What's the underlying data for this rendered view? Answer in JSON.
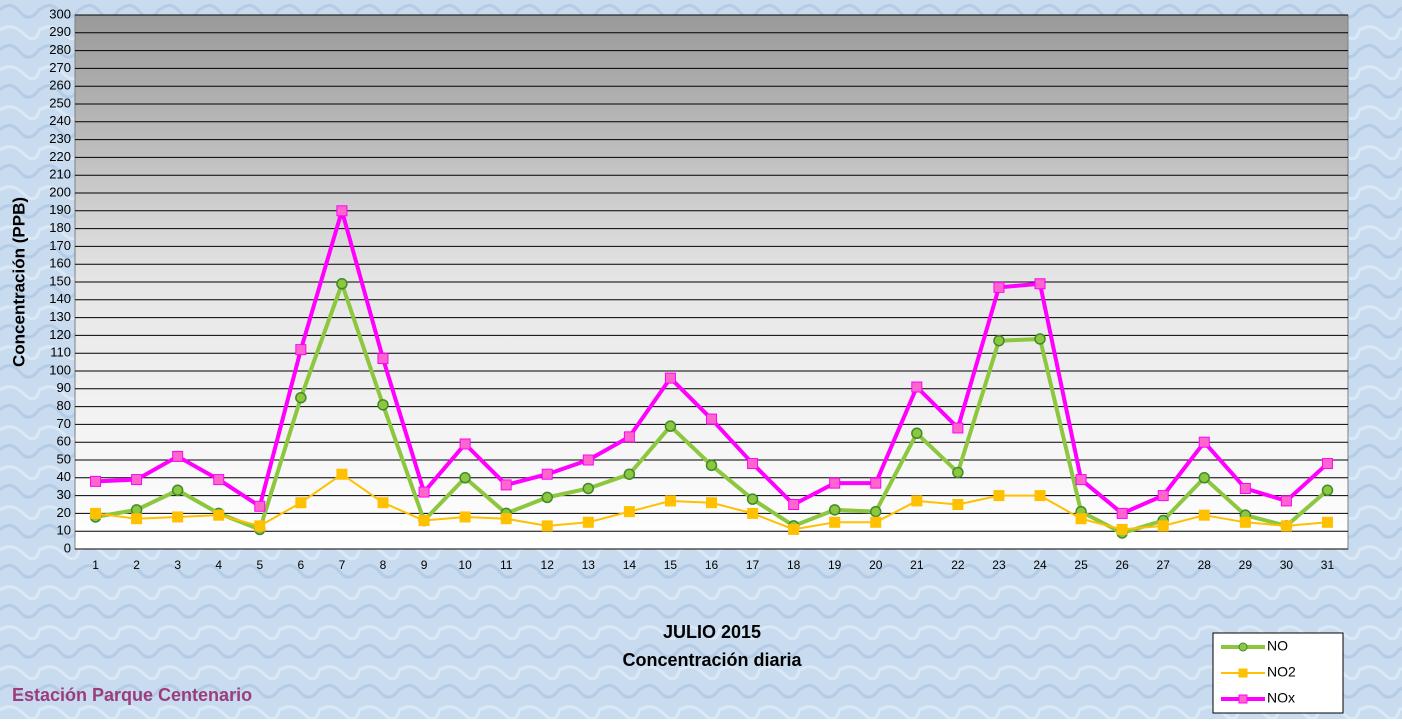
{
  "chart_data": {
    "type": "line",
    "title": [
      "JULIO 2015",
      "Concentración diaria"
    ],
    "subtitle": "Estación Parque Centenario",
    "ylabel": "Concentración  (PPB)",
    "categories": [
      "1",
      "2",
      "3",
      "4",
      "5",
      "6",
      "7",
      "8",
      "9",
      "10",
      "11",
      "12",
      "13",
      "14",
      "15",
      "16",
      "17",
      "18",
      "19",
      "20",
      "21",
      "22",
      "23",
      "24",
      "25",
      "26",
      "27",
      "28",
      "29",
      "30",
      "31"
    ],
    "series": [
      {
        "name": "NO",
        "color": "#8dc63f",
        "marker": "circle",
        "values": [
          18,
          22,
          33,
          20,
          11,
          85,
          149,
          81,
          16,
          40,
          20,
          29,
          34,
          42,
          69,
          47,
          28,
          13,
          22,
          21,
          65,
          43,
          117,
          118,
          21,
          9,
          16,
          40,
          19,
          13,
          33
        ]
      },
      {
        "name": "NO2",
        "color": "#ffc000",
        "marker": "square",
        "values": [
          20,
          17,
          18,
          19,
          13,
          26,
          42,
          26,
          16,
          18,
          17,
          13,
          15,
          21,
          27,
          26,
          20,
          11,
          15,
          15,
          27,
          25,
          30,
          30,
          17,
          11,
          13,
          19,
          15,
          13,
          15
        ]
      },
      {
        "name": "NOx",
        "color": "#ff00ff",
        "marker": "square",
        "values": [
          38,
          39,
          52,
          39,
          24,
          112,
          190,
          107,
          32,
          59,
          36,
          42,
          50,
          63,
          96,
          73,
          48,
          25,
          37,
          37,
          91,
          68,
          147,
          149,
          39,
          20,
          30,
          60,
          34,
          27,
          48
        ]
      }
    ],
    "ylim": [
      0,
      300
    ],
    "yticks": [
      0,
      10,
      20,
      30,
      40,
      50,
      60,
      70,
      80,
      90,
      100,
      110,
      120,
      130,
      140,
      150,
      160,
      170,
      180,
      190,
      200,
      210,
      220,
      230,
      240,
      250,
      260,
      270,
      280,
      290,
      300
    ],
    "grid": true,
    "legend": "lower right"
  }
}
